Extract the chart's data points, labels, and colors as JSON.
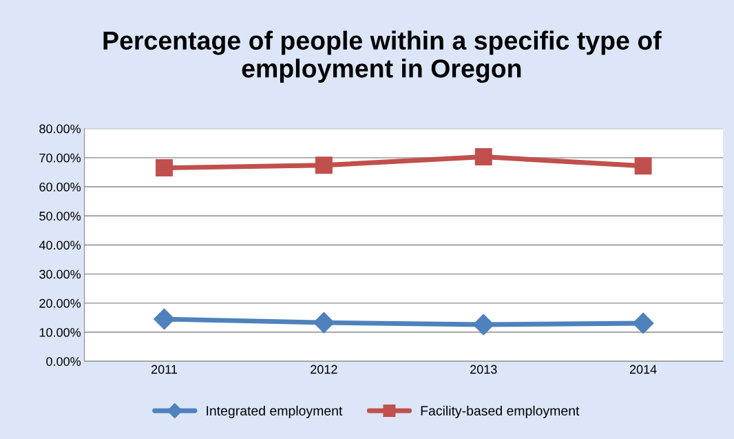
{
  "chart_data": {
    "type": "line",
    "title": "Percentage of people within a specific type of employment in Oregon",
    "categories": [
      "2011",
      "2012",
      "2013",
      "2014"
    ],
    "series": [
      {
        "name": "Integrated employment",
        "color": "#4f81bd",
        "marker": "diamond",
        "values": [
          14.5,
          13.3,
          12.6,
          13.1
        ]
      },
      {
        "name": "Facility-based employment",
        "color": "#c0504d",
        "marker": "square",
        "values": [
          66.5,
          67.4,
          70.3,
          67.2
        ]
      }
    ],
    "ylim": [
      0,
      80
    ],
    "yticks": [
      {
        "value": 0,
        "label": "0.00%"
      },
      {
        "value": 10,
        "label": "10.00%"
      },
      {
        "value": 20,
        "label": "20.00%"
      },
      {
        "value": 30,
        "label": "30.00%"
      },
      {
        "value": 40,
        "label": "40.00%"
      },
      {
        "value": 50,
        "label": "50.00%"
      },
      {
        "value": 60,
        "label": "60.00%"
      },
      {
        "value": 70,
        "label": "70.00%"
      },
      {
        "value": 80,
        "label": "80.00%"
      }
    ],
    "grid": "y",
    "legend": "bottom",
    "line_style": "solid"
  }
}
